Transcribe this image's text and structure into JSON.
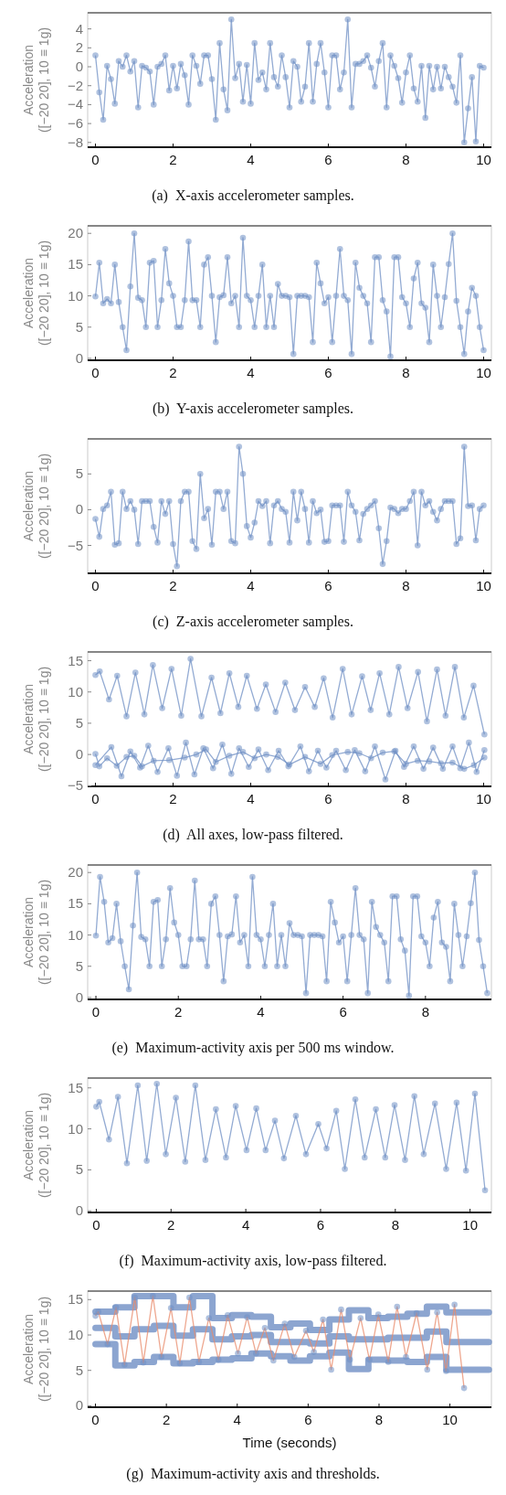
{
  "chart_data": [
    {
      "type": "line",
      "title": "(a)  X-axis accelerometer samples.",
      "ylabel": "Acceleration ([−20 20], 10 ≡ 1g)",
      "xlim": [
        -0.2,
        10.2
      ],
      "xticks": [
        0,
        2,
        4,
        6,
        8,
        10
      ],
      "ylim": [
        -8.5,
        5.7
      ],
      "yticks": [
        -8,
        -6,
        -4,
        -2,
        0,
        2,
        4
      ],
      "marker": "circle",
      "series": [
        {
          "color": "#6f8fc4",
          "x": [
            0,
            0.1,
            0.2,
            0.3,
            0.4,
            0.5,
            0.6,
            0.7,
            0.8,
            0.9,
            1,
            1.1,
            1.2,
            1.3,
            1.4,
            1.5,
            1.6,
            1.7,
            1.8,
            1.9,
            2,
            2.1,
            2.2,
            2.3,
            2.4,
            2.5,
            2.6,
            2.7,
            2.8,
            2.9,
            3,
            3.1,
            3.2,
            3.3,
            3.4,
            3.5,
            3.6,
            3.7,
            3.8,
            3.9,
            4,
            4.1,
            4.2,
            4.3,
            4.4,
            4.5,
            4.6,
            4.7,
            4.8,
            4.9,
            5,
            5.1,
            5.2,
            5.3,
            5.4,
            5.5,
            5.6,
            5.7,
            5.8,
            5.9,
            6,
            6.1,
            6.2,
            6.3,
            6.4,
            6.5,
            6.6,
            6.7,
            6.8,
            6.9,
            7,
            7.1,
            7.2,
            7.3,
            7.4,
            7.5,
            7.6,
            7.7,
            7.8,
            7.9,
            8,
            8.1,
            8.2,
            8.3,
            8.4,
            8.5,
            8.6,
            8.7,
            8.8,
            8.9,
            9,
            9.1,
            9.2,
            9.3,
            9.4,
            9.5,
            9.6,
            9.7,
            9.8,
            9.9,
            10
          ],
          "values": [
            1.2,
            -2.7,
            -5.6,
            0.1,
            -1.3,
            -3.9,
            0.6,
            0,
            1.2,
            -0.5,
            0.6,
            -4.3,
            0.1,
            -0.1,
            -0.5,
            -4,
            0,
            0.3,
            1.2,
            -2.5,
            0.1,
            -2.3,
            0.3,
            -0.9,
            -4,
            1.2,
            0.1,
            -1.8,
            1.2,
            1.2,
            -1.3,
            -5.6,
            2.5,
            -2.4,
            -4.6,
            5,
            -1.2,
            0.3,
            -3.7,
            0.2,
            -3.9,
            2.5,
            -1.4,
            -0.6,
            -2.4,
            2.5,
            -1.1,
            -2.1,
            1.2,
            -1.1,
            -4.3,
            0.6,
            0,
            -3.7,
            -2.1,
            2.5,
            -3.7,
            0.3,
            2.5,
            -0.6,
            -4.3,
            1.2,
            1.2,
            -2.4,
            -0.6,
            5,
            -4.3,
            0.3,
            0.3,
            0.6,
            1.2,
            -0.1,
            -2.1,
            0.6,
            2.5,
            -4.3,
            1.2,
            0.1,
            -1.2,
            -3.8,
            -0.6,
            1.2,
            -2.3,
            -3.7,
            0.1,
            -5.4,
            0.1,
            -2.4,
            0,
            -2.3,
            0,
            -1.1,
            -2.1,
            -3.8,
            1.2,
            -8,
            -4.4,
            -1.1,
            -7.9,
            0.1,
            -0.1
          ]
        }
      ]
    },
    {
      "type": "line",
      "title": "(b)  Y-axis accelerometer samples.",
      "ylabel": "Acceleration ([−20 20], 10 ≡ 1g)",
      "xlim": [
        -0.2,
        10.2
      ],
      "xticks": [
        0,
        2,
        4,
        6,
        8,
        10
      ],
      "ylim": [
        -0.3,
        21.2
      ],
      "yticks": [
        0,
        5,
        10,
        15,
        20
      ],
      "marker": "circle",
      "series": [
        {
          "color": "#6f8fc4",
          "x": [
            0,
            0.1,
            0.2,
            0.3,
            0.4,
            0.5,
            0.6,
            0.7,
            0.8,
            0.9,
            1,
            1.1,
            1.2,
            1.3,
            1.4,
            1.5,
            1.6,
            1.7,
            1.8,
            1.9,
            2,
            2.1,
            2.2,
            2.3,
            2.4,
            2.5,
            2.6,
            2.7,
            2.8,
            2.9,
            3,
            3.1,
            3.2,
            3.3,
            3.4,
            3.5,
            3.6,
            3.7,
            3.8,
            3.9,
            4,
            4.1,
            4.2,
            4.3,
            4.4,
            4.5,
            4.6,
            4.7,
            4.8,
            4.9,
            5,
            5.1,
            5.2,
            5.3,
            5.4,
            5.5,
            5.6,
            5.7,
            5.8,
            5.9,
            6,
            6.1,
            6.2,
            6.3,
            6.4,
            6.5,
            6.6,
            6.7,
            6.8,
            6.9,
            7,
            7.1,
            7.2,
            7.3,
            7.4,
            7.5,
            7.6,
            7.7,
            7.8,
            7.9,
            8,
            8.1,
            8.2,
            8.3,
            8.4,
            8.5,
            8.6,
            8.7,
            8.8,
            8.9,
            9,
            9.1,
            9.2,
            9.3,
            9.4,
            9.5,
            9.6,
            9.7,
            9.8,
            9.9,
            10
          ],
          "values": [
            9.9,
            15.3,
            8.8,
            9.5,
            8.8,
            15,
            9,
            5,
            1.3,
            11.5,
            20,
            9.7,
            9.3,
            5,
            15.3,
            15.6,
            5,
            9.3,
            17.5,
            12,
            10,
            5,
            5,
            9.3,
            18.7,
            9.3,
            9.3,
            5,
            15,
            16.2,
            10,
            2.6,
            9.8,
            10.1,
            16.2,
            8.8,
            10,
            5,
            19.3,
            10,
            9.3,
            5,
            10,
            15,
            5,
            10,
            5,
            11.9,
            10,
            10,
            9.8,
            0.7,
            10,
            10,
            10,
            9.8,
            2.6,
            15.3,
            12,
            8.8,
            9.8,
            2.6,
            10,
            17.5,
            10,
            9.3,
            0.7,
            15.3,
            11.3,
            10,
            8.8,
            2.6,
            16.2,
            16.2,
            9.3,
            7.5,
            0.3,
            16.2,
            16.2,
            9.8,
            8.8,
            5,
            12.8,
            15.3,
            8.8,
            8.1,
            2.6,
            15,
            10,
            5,
            9.8,
            15.1,
            20,
            9.2,
            5,
            0.7,
            7.5,
            11.3,
            10,
            5,
            1.3
          ]
        }
      ]
    },
    {
      "type": "line",
      "title": "(c)  Z-axis accelerometer samples.",
      "ylabel": "Acceleration ([−20 20], 10 ≡ 1g)",
      "xlim": [
        -0.2,
        10.2
      ],
      "xticks": [
        0,
        2,
        4,
        6,
        8,
        10
      ],
      "ylim": [
        -8.9,
        9.9
      ],
      "yticks": [
        -5,
        0,
        5
      ],
      "marker": "circle",
      "series": [
        {
          "color": "#6f8fc4",
          "x": [
            0,
            0.1,
            0.2,
            0.3,
            0.4,
            0.5,
            0.6,
            0.7,
            0.8,
            0.9,
            1,
            1.1,
            1.2,
            1.3,
            1.4,
            1.5,
            1.6,
            1.7,
            1.8,
            1.9,
            2,
            2.1,
            2.2,
            2.3,
            2.4,
            2.5,
            2.6,
            2.7,
            2.8,
            2.9,
            3,
            3.1,
            3.2,
            3.3,
            3.4,
            3.5,
            3.6,
            3.7,
            3.8,
            3.9,
            4,
            4.1,
            4.2,
            4.3,
            4.4,
            4.5,
            4.6,
            4.7,
            4.8,
            4.9,
            5,
            5.1,
            5.2,
            5.3,
            5.4,
            5.5,
            5.6,
            5.7,
            5.8,
            5.9,
            6,
            6.1,
            6.2,
            6.3,
            6.4,
            6.5,
            6.6,
            6.7,
            6.8,
            6.9,
            7,
            7.1,
            7.2,
            7.3,
            7.4,
            7.5,
            7.6,
            7.7,
            7.8,
            7.9,
            8,
            8.1,
            8.2,
            8.3,
            8.4,
            8.5,
            8.6,
            8.7,
            8.8,
            8.9,
            9,
            9.1,
            9.2,
            9.3,
            9.4,
            9.5,
            9.6,
            9.7,
            9.8,
            9.9,
            10
          ],
          "values": [
            -1.3,
            -3.8,
            0.1,
            0.6,
            2.5,
            -4.9,
            -4.7,
            2.5,
            0.1,
            1.2,
            0,
            -4.8,
            1.2,
            1.2,
            1.2,
            -2.4,
            -4.6,
            1.2,
            -0.6,
            1.2,
            -4.8,
            -7.9,
            1.2,
            2.5,
            2.5,
            -4.4,
            -5.5,
            5,
            -1.2,
            0.1,
            -4.9,
            2.5,
            2.5,
            0.1,
            2.5,
            -4.4,
            -4.7,
            8.8,
            5,
            -2.3,
            -3.9,
            -1.8,
            1.2,
            0.5,
            1.2,
            -4.7,
            0.6,
            1.2,
            0.1,
            -0.3,
            -4.6,
            2.5,
            -1.5,
            2.5,
            0.1,
            -4.6,
            1.2,
            -0.5,
            0,
            -4.5,
            -4.4,
            0.6,
            0.6,
            0.6,
            -4.5,
            2.5,
            0.6,
            -0.3,
            -4.3,
            -0.6,
            0.1,
            0.6,
            1.2,
            -2.6,
            -7.6,
            -4.4,
            0.3,
            0.1,
            -0.5,
            0.1,
            0.1,
            1.2,
            2.5,
            -5,
            2.5,
            0.6,
            1.2,
            -0.3,
            -1.5,
            0.1,
            1.2,
            1.2,
            1.2,
            -4.8,
            -4,
            8.8,
            0.5,
            0.6,
            -4.3,
            0.1,
            0.6
          ]
        }
      ]
    },
    {
      "type": "line",
      "title": "(d)  All axes, low-pass filtered.",
      "ylabel": "Acceleration ([−20 20], 10 ≡ 1g)",
      "xlim": [
        -0.2,
        10.2
      ],
      "xticks": [
        0,
        2,
        4,
        6,
        8,
        10
      ],
      "ylim": [
        -5.1,
        16.4
      ],
      "yticks": [
        -5,
        0,
        5,
        10,
        15
      ],
      "marker": "circle",
      "series": [
        {
          "color": "#6f8fc4",
          "x": [
            0,
            0.11,
            0.35,
            0.56,
            0.8,
            1.03,
            1.26,
            1.48,
            1.72,
            1.96,
            2.21,
            2.45,
            2.73,
            2.99,
            3.22,
            3.45,
            3.68,
            3.9,
            4.16,
            4.39,
            4.64,
            4.89,
            5.14,
            5.4,
            5.65,
            5.88,
            6.11,
            6.37,
            6.6,
            6.87,
            7.09,
            7.32,
            7.57,
            7.81,
            8.04,
            8.31,
            8.54,
            8.8,
            9.02,
            9.26,
            9.49,
            9.74,
            10.02
          ],
          "values": [
            12.7,
            13.3,
            8.8,
            12.6,
            6.1,
            13.1,
            6.4,
            14.3,
            7.4,
            13.7,
            6.2,
            15.3,
            6.1,
            12.3,
            6.6,
            13,
            7.6,
            12.6,
            7.3,
            11.2,
            6.8,
            11.5,
            7.1,
            10.8,
            7.6,
            12.2,
            5.9,
            13.7,
            6.4,
            12.5,
            7.1,
            13,
            6.4,
            14,
            7.4,
            13.2,
            5.3,
            13.6,
            6.2,
            14,
            5.9,
            11,
            3.2
          ]
        },
        {
          "color": "#6f8fc4",
          "x": [
            0,
            0.41,
            0.67,
            0.9,
            1.15,
            1.36,
            1.6,
            1.88,
            2.1,
            2.33,
            2.55,
            2.78,
            3.03,
            3.27,
            3.5,
            3.7,
            3.95,
            4.2,
            4.45,
            4.72,
            4.97,
            5.28,
            5.5,
            5.73,
            5.95,
            6.2,
            6.45,
            6.68,
            6.95,
            7.2,
            7.47,
            7.73,
            7.95,
            8.2,
            8.45,
            8.7,
            8.95,
            9.2,
            9.4,
            9.62,
            9.82,
            10.02
          ],
          "values": [
            -1.7,
            1.2,
            -3.5,
            0.5,
            -2.1,
            1.4,
            -2.8,
            1,
            -3.4,
            1.9,
            -3.2,
            1,
            -2.2,
            1.6,
            -3.1,
            1,
            -2,
            0.8,
            -2.5,
            0.6,
            -1.9,
            1.3,
            -2.7,
            0.6,
            -2.1,
            0.6,
            -2.5,
            0.7,
            -2.7,
            1.3,
            -4,
            0.6,
            -2,
            1.3,
            -2.3,
            1.1,
            -2.3,
            1.3,
            -2.2,
            1.9,
            -2.8,
            0.7
          ]
        },
        {
          "color": "#6f8fc4",
          "x": [
            0,
            0.1,
            0.3,
            0.55,
            0.8,
            1,
            1.2,
            1.5,
            1.9,
            2.3,
            2.6,
            2.85,
            3.1,
            3.45,
            3.8,
            4.1,
            4.4,
            4.7,
            5,
            5.4,
            5.8,
            6.1,
            6.5,
            6.8,
            7.1,
            7.4,
            7.7,
            8,
            8.3,
            8.6,
            8.9,
            9.2,
            9.5,
            9.75,
            10.02
          ],
          "values": [
            0.1,
            -1.9,
            -0.6,
            -1.8,
            -0.4,
            -0.2,
            -1.9,
            -1,
            -0.9,
            -0.5,
            0,
            0.8,
            -1.2,
            -0.2,
            0.4,
            -0.6,
            0,
            -0.4,
            -1.6,
            -0.4,
            -1.5,
            -0.1,
            0.4,
            0.2,
            -0.6,
            0.3,
            0.5,
            -1.5,
            -1,
            -1.1,
            -1.4,
            -1.3,
            -2.3,
            -1.7,
            -0.5
          ]
        }
      ]
    },
    {
      "type": "line",
      "title": "(e)  Maximum-activity axis per 500 ms window.",
      "ylabel": "Acceleration ([−20 20], 10 ≡ 1g)",
      "xlim": [
        -0.2,
        9.6
      ],
      "xticks": [
        0,
        2,
        4,
        6,
        8
      ],
      "ylim": [
        -0.3,
        21.2
      ],
      "yticks": [
        0,
        5,
        10,
        15,
        20
      ],
      "marker": "circle",
      "series": [
        {
          "color": "#6f8fc4",
          "x": [
            0,
            0.1,
            0.2,
            0.3,
            0.4,
            0.5,
            0.6,
            0.7,
            0.8,
            0.9,
            1,
            1.1,
            1.2,
            1.3,
            1.4,
            1.5,
            1.6,
            1.7,
            1.8,
            1.9,
            2,
            2.1,
            2.2,
            2.3,
            2.4,
            2.5,
            2.6,
            2.7,
            2.8,
            2.9,
            3,
            3.1,
            3.2,
            3.3,
            3.4,
            3.5,
            3.6,
            3.7,
            3.8,
            3.9,
            4,
            4.1,
            4.2,
            4.3,
            4.4,
            4.5,
            4.6,
            4.7,
            4.8,
            4.9,
            5,
            5.1,
            5.2,
            5.3,
            5.4,
            5.5,
            5.6,
            5.7,
            5.8,
            5.9,
            6,
            6.1,
            6.2,
            6.3,
            6.4,
            6.5,
            6.6,
            6.7,
            6.8,
            6.9,
            7,
            7.1,
            7.2,
            7.3,
            7.4,
            7.5,
            7.6,
            7.7,
            7.8,
            7.9,
            8,
            8.1,
            8.2,
            8.3,
            8.4,
            8.5,
            8.6,
            8.7,
            8.8,
            8.9,
            9,
            9.1,
            9.2,
            9.3,
            9.4,
            9.5
          ],
          "values": [
            9.9,
            19.3,
            15.3,
            8.8,
            9.5,
            15,
            9,
            5,
            1.3,
            11.5,
            20,
            9.7,
            9.3,
            5,
            15.3,
            15.6,
            5,
            9.3,
            17.5,
            12,
            10,
            5,
            5,
            9.3,
            18.7,
            9.3,
            9.3,
            5,
            15,
            16.2,
            10,
            2.6,
            9.8,
            10.1,
            16.2,
            8.8,
            10,
            5,
            19.3,
            10,
            9.3,
            5,
            10,
            15,
            5,
            10,
            5,
            11.9,
            10,
            10,
            9.8,
            0.7,
            10,
            10,
            10,
            9.8,
            2.6,
            15.3,
            12,
            8.8,
            9.8,
            2.6,
            10,
            17.5,
            10,
            9.3,
            0.7,
            15.3,
            11.3,
            10,
            8.8,
            2.6,
            16.2,
            16.2,
            9.3,
            7.5,
            0.3,
            16.2,
            16.2,
            9.8,
            8.8,
            5,
            12.8,
            15.3,
            8.8,
            8.1,
            2.6,
            15,
            10,
            5,
            9.8,
            15.1,
            20,
            9.2,
            5,
            0.7
          ]
        }
      ]
    },
    {
      "type": "line",
      "title": "(f)  Maximum-activity axis, low-pass filtered.",
      "ylabel": "Acceleration ([−20 20], 10 ≡ 1g)",
      "xlim": [
        -0.23,
        10.57
      ],
      "xticks": [
        0,
        2,
        4,
        6,
        8,
        10
      ],
      "ylim": [
        -0.2,
        16.2
      ],
      "yticks": [
        0,
        5,
        10,
        15
      ],
      "marker": "circle",
      "series": [
        {
          "color": "#6f8fc4",
          "x": [
            0,
            0.08,
            0.34,
            0.58,
            0.82,
            1.11,
            1.35,
            1.62,
            1.86,
            2.13,
            2.38,
            2.65,
            2.92,
            3.2,
            3.47,
            3.73,
            4.02,
            4.28,
            4.53,
            4.78,
            5.02,
            5.34,
            5.61,
            5.94,
            6.16,
            6.42,
            6.65,
            6.93,
            7.18,
            7.48,
            7.73,
            7.98,
            8.26,
            8.51,
            8.76,
            9.06,
            9.36,
            9.64,
            9.89,
            10.13,
            10.4
          ],
          "values": [
            12.7,
            13.3,
            8.7,
            13.9,
            5.8,
            15.3,
            6.1,
            15.5,
            6.9,
            13.8,
            6,
            15.3,
            6.2,
            12.4,
            6.5,
            12.8,
            7.4,
            12.5,
            7.4,
            11,
            6.4,
            11.6,
            6.9,
            10.6,
            7.6,
            12.2,
            5.1,
            13.6,
            6.5,
            12.4,
            6.5,
            12.9,
            6.2,
            14,
            6.9,
            13.1,
            5.1,
            13.2,
            4.9,
            14.3,
            2.5
          ]
        }
      ]
    },
    {
      "type": "line",
      "title": "(g)  Maximum-activity axis and thresholds.",
      "ylabel": "Acceleration ([−20 20], 10 ≡ 1g)",
      "xlabel": "Time (seconds)",
      "xlim": [
        -0.22,
        11.17
      ],
      "xticks": [
        0,
        2,
        4,
        6,
        8,
        10
      ],
      "ylim": [
        -0.2,
        16.2
      ],
      "yticks": [
        0,
        5,
        10,
        15
      ],
      "marker": "circle",
      "series": [
        {
          "color": "#e8896a",
          "x": [
            0,
            0.08,
            0.34,
            0.58,
            0.82,
            1.11,
            1.35,
            1.62,
            1.86,
            2.13,
            2.38,
            2.65,
            2.92,
            3.2,
            3.47,
            3.73,
            4.02,
            4.28,
            4.53,
            4.78,
            5.02,
            5.34,
            5.61,
            5.94,
            6.16,
            6.42,
            6.65,
            6.93,
            7.18,
            7.48,
            7.73,
            7.98,
            8.26,
            8.51,
            8.76,
            9.06,
            9.36,
            9.64,
            9.89,
            10.13,
            10.4
          ],
          "values": [
            12.7,
            13.3,
            8.7,
            13.9,
            5.8,
            15.3,
            6.1,
            15.5,
            6.9,
            13.8,
            6,
            15.3,
            6.2,
            12.4,
            6.5,
            12.8,
            7.4,
            12.5,
            7.4,
            11,
            6.4,
            11.6,
            6.9,
            10.6,
            7.6,
            12.2,
            5.1,
            13.6,
            6.5,
            12.4,
            6.5,
            12.9,
            6.2,
            14,
            6.9,
            13.1,
            5.1,
            13.2,
            4.9,
            14.3,
            2.5
          ]
        },
        {
          "type": "step",
          "marker": "none",
          "color": "#6f8fc4",
          "x": [
            0,
            0.56,
            1.1,
            1.65,
            2.2,
            2.75,
            3.3,
            3.85,
            4.4,
            4.95,
            5.5,
            6.05,
            6.6,
            7.15,
            7.7,
            8.25,
            8.8,
            9.35,
            9.9,
            11.1
          ],
          "values": [
            13.3,
            13.9,
            15.5,
            15.5,
            13.9,
            15.5,
            12.4,
            12.8,
            12.6,
            11.1,
            11.6,
            10.7,
            12.2,
            13.5,
            12.4,
            12.6,
            13,
            14,
            13.2,
            13.2
          ]
        },
        {
          "type": "step",
          "marker": "none",
          "color": "#6f8fc4",
          "x": [
            0,
            0.56,
            1.1,
            1.65,
            2.2,
            2.75,
            3.3,
            3.85,
            4.4,
            4.95,
            5.5,
            6.05,
            6.6,
            7.15,
            7.7,
            8.25,
            8.8,
            9.35,
            9.9,
            11.1
          ],
          "values": [
            11,
            9.8,
            10.8,
            11.3,
            9.9,
            10.8,
            9.4,
            9.8,
            10,
            9,
            9,
            8.8,
            9.8,
            9.4,
            9.4,
            9.6,
            9.6,
            10.5,
            9,
            9
          ]
        },
        {
          "type": "step",
          "marker": "none",
          "color": "#6f8fc4",
          "x": [
            0,
            0.56,
            1.1,
            1.65,
            2.2,
            2.75,
            3.3,
            3.85,
            4.4,
            4.95,
            5.5,
            6.05,
            6.6,
            7.15,
            7.7,
            8.25,
            8.8,
            9.35,
            9.9,
            11.1
          ],
          "values": [
            8.7,
            5.7,
            6.2,
            6.9,
            6,
            6.2,
            6.5,
            6.7,
            7.4,
            7,
            6.4,
            7,
            7.5,
            5.2,
            6.5,
            6.4,
            6.2,
            6.9,
            5.1,
            5.1
          ]
        }
      ]
    }
  ]
}
